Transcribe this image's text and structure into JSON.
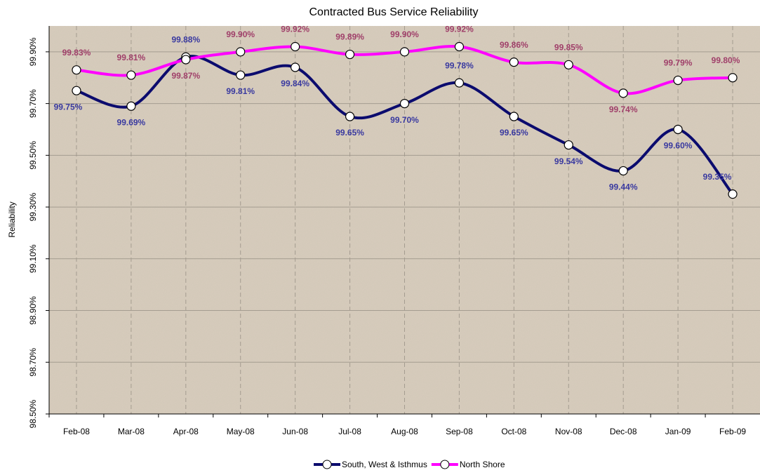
{
  "chart_data": {
    "type": "line",
    "title": "Contracted Bus Service Reliability",
    "y_label": "Reliability",
    "categories": [
      "Feb-08",
      "Mar-08",
      "Apr-08",
      "May-08",
      "Jun-08",
      "Jul-08",
      "Aug-08",
      "Sep-08",
      "Oct-08",
      "Nov-08",
      "Dec-08",
      "Jan-09",
      "Feb-09"
    ],
    "series": [
      {
        "name": "South, West & Isthmus",
        "color": "#0b0b6e",
        "values": [
          99.75,
          99.69,
          99.88,
          99.81,
          99.84,
          99.65,
          99.7,
          99.78,
          99.65,
          99.54,
          99.44,
          99.6,
          99.35
        ],
        "value_labels": [
          "99.75%",
          "99.69%",
          "99.88%",
          "99.81%",
          "99.84%",
          "99.65%",
          "99.70%",
          "99.78%",
          "99.65%",
          "99.54%",
          "99.44%",
          "99.60%",
          "99.35%"
        ],
        "label_color": "#3a3aa0"
      },
      {
        "name": "North Shore",
        "color": "#ff00ff",
        "values": [
          99.83,
          99.81,
          99.87,
          99.9,
          99.92,
          99.89,
          99.9,
          99.92,
          99.86,
          99.85,
          99.74,
          99.79,
          99.8
        ],
        "value_labels": [
          "99.83%",
          "99.81%",
          "99.87%",
          "99.90%",
          "99.92%",
          "99.89%",
          "99.90%",
          "99.92%",
          "99.86%",
          "99.85%",
          "99.74%",
          "99.79%",
          "99.80%"
        ],
        "label_color": "#a0406a"
      }
    ],
    "ylim": [
      98.5,
      100.0
    ],
    "yticks": [
      {
        "value": 98.5,
        "label": "98.50%"
      },
      {
        "value": 98.7,
        "label": "98.70%"
      },
      {
        "value": 98.9,
        "label": "98.90%"
      },
      {
        "value": 99.1,
        "label": "99.10%"
      },
      {
        "value": 99.3,
        "label": "99.30%"
      },
      {
        "value": 99.5,
        "label": "99.50%"
      },
      {
        "value": 99.7,
        "label": "99.70%"
      },
      {
        "value": 99.9,
        "label": "99.90%"
      }
    ],
    "grid": true,
    "legend": "bottom",
    "background": "#d8cdbd"
  }
}
